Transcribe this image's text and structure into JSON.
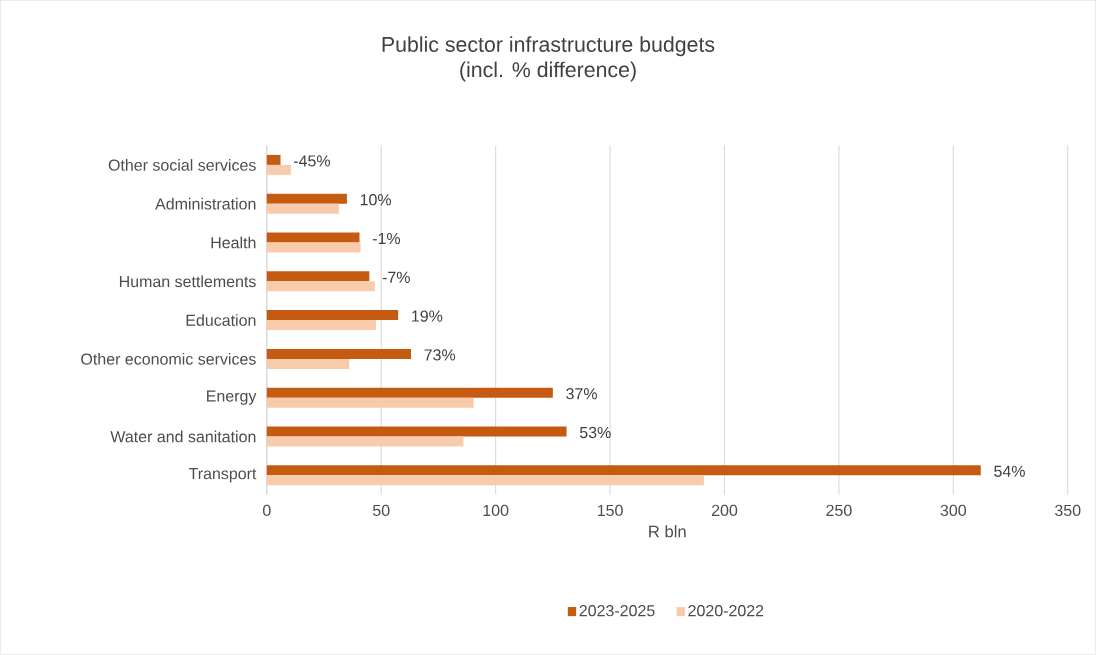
{
  "chart_data": {
    "type": "bar",
    "orientation": "horizontal",
    "title": "Public sector infrastructure budgets",
    "subtitle": "(incl. % difference)",
    "xlabel": "R bln",
    "categories": [
      "Other social services",
      "Administration",
      "Health",
      "Human settlements",
      "Education",
      "Other economic services",
      "Energy",
      "Water and sanitation",
      "Transport"
    ],
    "series": [
      {
        "name": "2023-2025",
        "color": "#c55a11",
        "values": [
          6,
          35,
          40.5,
          44.8,
          57.4,
          63,
          125,
          131,
          312
        ]
      },
      {
        "name": "2020-2022",
        "color": "#f8cbad",
        "values": [
          10.5,
          31.5,
          41,
          47.2,
          47.7,
          36,
          90.4,
          85.9,
          191
        ]
      }
    ],
    "annotations": [
      {
        "text": "-45%",
        "x": 6,
        "y": "Other social services"
      },
      {
        "text": "10%",
        "x": 35,
        "y": "Administration"
      },
      {
        "text": "-1%",
        "x": 40.5,
        "y": "Health"
      },
      {
        "text": "-7%",
        "x": 44.8,
        "y": "Human settlements"
      },
      {
        "text": "19%",
        "x": 57.4,
        "y": "Education"
      },
      {
        "text": "73%",
        "x": 63,
        "y": "Other economic services"
      },
      {
        "text": "37%",
        "x": 125,
        "y": "Energy"
      },
      {
        "text": "53%",
        "x": 131,
        "y": "Water and sanitation"
      },
      {
        "text": "54%",
        "x": 312,
        "y": "Transport"
      }
    ],
    "xlim": [
      0,
      350
    ],
    "xticks": [
      0,
      50,
      100,
      150,
      200,
      250,
      300,
      350
    ],
    "grid": "x",
    "legend": "bottom"
  }
}
